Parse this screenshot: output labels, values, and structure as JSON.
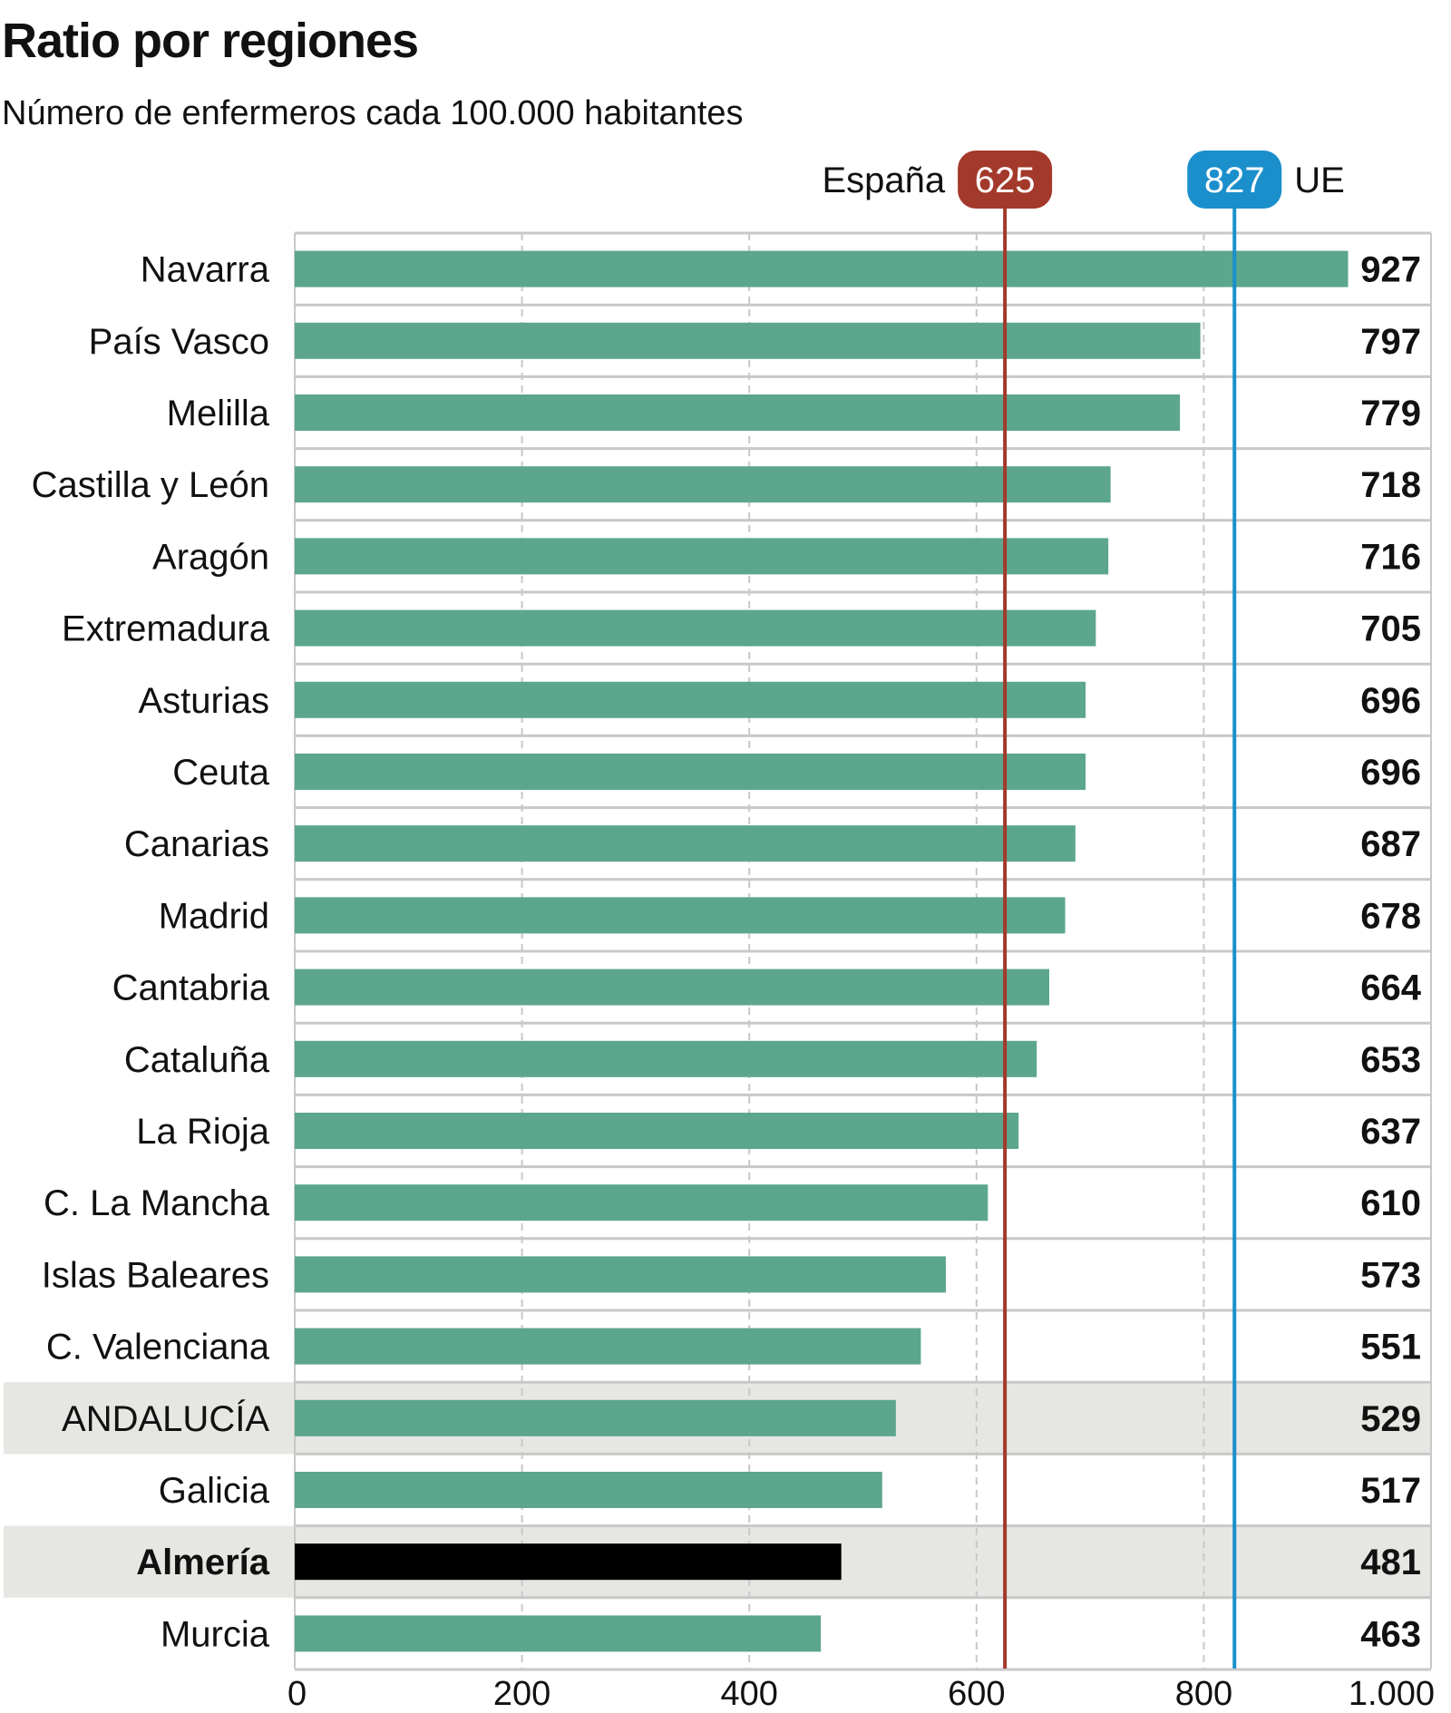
{
  "title": "Ratio por regiones",
  "subtitle": "Número de enfermeros cada 100.000 habitantes",
  "chart_data": {
    "type": "bar",
    "orientation": "horizontal",
    "title": "Ratio por regiones",
    "subtitle": "Número de enfermeros cada 100.000 habitantes",
    "categories": [
      "Navarra",
      "País Vasco",
      "Melilla",
      "Castilla y León",
      "Aragón",
      "Extremadura",
      "Asturias",
      "Ceuta",
      "Canarias",
      "Madrid",
      "Cantabria",
      "Cataluña",
      "La Rioja",
      "C. La Mancha",
      "Islas Baleares",
      "C. Valenciana",
      "ANDALUCÍA",
      "Galicia",
      "Almería",
      "Murcia"
    ],
    "values": [
      927,
      797,
      779,
      718,
      716,
      705,
      696,
      696,
      687,
      678,
      664,
      653,
      637,
      610,
      573,
      551,
      529,
      517,
      481,
      463
    ],
    "value_labels": [
      "927",
      "797",
      "779",
      "718",
      "716",
      "705",
      "696",
      "696",
      "687",
      "678",
      "664",
      "653",
      "637",
      "610",
      "573",
      "551",
      "529",
      "517",
      "481",
      "463"
    ],
    "highlighted": [
      "ANDALUCÍA",
      "Almería"
    ],
    "bold_categories": [
      "Almería"
    ],
    "xlim": [
      0,
      1000
    ],
    "xticks": [
      0,
      200,
      400,
      600,
      800,
      1000
    ],
    "xtick_labels": [
      "0",
      "200",
      "400",
      "600",
      "800",
      "1.000"
    ],
    "grid": true,
    "reference_lines": [
      {
        "label": "España",
        "value": 625,
        "value_label": "625",
        "color": "#a3392b",
        "label_side": "left"
      },
      {
        "label": "UE",
        "value": 827,
        "value_label": "827",
        "color": "#1a8fcb",
        "label_side": "right"
      }
    ],
    "colors": {
      "bar": "#5ca68d",
      "highlight_bar": "#000000",
      "highlight_row": "#e6e6e3",
      "gridline": "#c8c8c8"
    }
  }
}
